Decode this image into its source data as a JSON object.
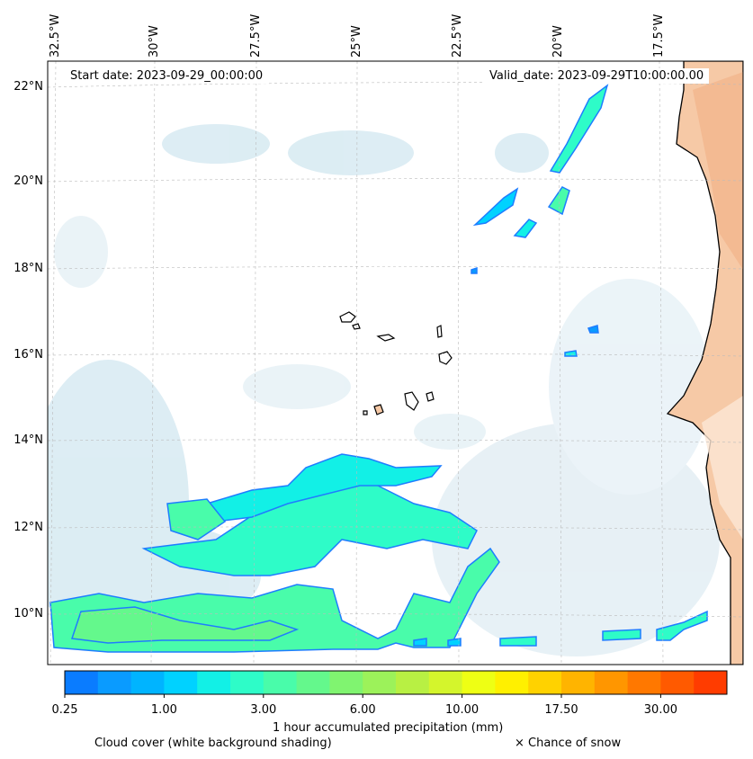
{
  "header": {
    "start_date": "Start date: 2023-09-29_00:00:00",
    "valid_date": "Valid_date: 2023-09-29T10:00:00.00"
  },
  "axes": {
    "lon_labels": [
      "32.5°W",
      "30°W",
      "27.5°W",
      "25°W",
      "22.5°W",
      "20°W",
      "17.5°W"
    ],
    "lat_labels": [
      "22°N",
      "20°N",
      "18°N",
      "16°N",
      "14°N",
      "12°N",
      "10°N"
    ]
  },
  "colorbar": {
    "ticks": [
      "0.25",
      "1.00",
      "3.00",
      "6.00",
      "10.00",
      "17.50",
      "30.00"
    ],
    "colors": [
      "#0a7cff",
      "#0a9bff",
      "#00b4ff",
      "#00d2ff",
      "#12f0e6",
      "#2efcc8",
      "#49fcaa",
      "#64f88c",
      "#80f470",
      "#9cf25a",
      "#b8f043",
      "#d4f52c",
      "#eeff14",
      "#fff000",
      "#ffd200",
      "#ffb400",
      "#ff9600",
      "#ff7800",
      "#ff5a00",
      "#ff3c00"
    ],
    "label": "1 hour accumulated precipitation (mm)"
  },
  "legend": {
    "cloud_cover": "Cloud cover (white background shading)",
    "snow": "× Chance of snow"
  }
}
